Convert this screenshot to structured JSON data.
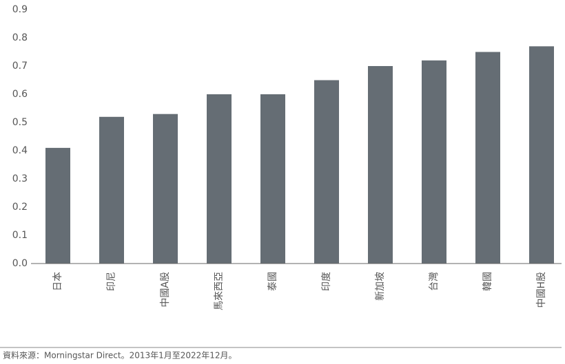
{
  "chart_data": {
    "type": "bar",
    "categories": [
      "日本",
      "印尼",
      "中國A股",
      "馬來西亞",
      "泰國",
      "印度",
      "新加坡",
      "台灣",
      "韓國",
      "中國H股"
    ],
    "values": [
      0.41,
      0.52,
      0.53,
      0.6,
      0.6,
      0.65,
      0.7,
      0.72,
      0.75,
      0.77
    ],
    "color": "#656d74",
    "ylim": [
      0,
      0.9
    ],
    "yticks": [
      {
        "value": 0,
        "label": "0.0"
      },
      0.1,
      0.2,
      0.3,
      0.4,
      0.5,
      0.6,
      0.7,
      0.8,
      0.9
    ],
    "grid": false,
    "source": "資料來源：Morningstar Direct。2013年1月至2022年12月。"
  }
}
